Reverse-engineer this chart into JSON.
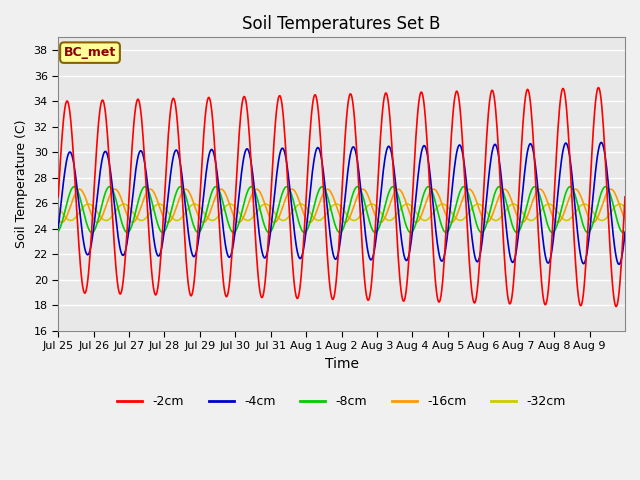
{
  "title": "Soil Temperatures Set B",
  "xlabel": "Time",
  "ylabel": "Soil Temperature (C)",
  "annotation": "BC_met",
  "ylim": [
    16,
    39
  ],
  "yticks": [
    16,
    18,
    20,
    22,
    24,
    26,
    28,
    30,
    32,
    34,
    36,
    38
  ],
  "series_colors": {
    "-2cm": "#ff0000",
    "-4cm": "#0000cc",
    "-8cm": "#00cc00",
    "-16cm": "#ff9900",
    "-32cm": "#cccc00"
  },
  "background_color": "#e8e8e8",
  "grid_color": "#ffffff",
  "x_date_labels": [
    "Jul 25",
    "Jul 26",
    "Jul 27",
    "Jul 28",
    "Jul 29",
    "Jul 30",
    "Jul 31",
    "Aug 1",
    "Aug 2",
    "Aug 3",
    "Aug 4",
    "Aug 5",
    "Aug 6",
    "Aug 7",
    "Aug 8",
    "Aug 9"
  ]
}
